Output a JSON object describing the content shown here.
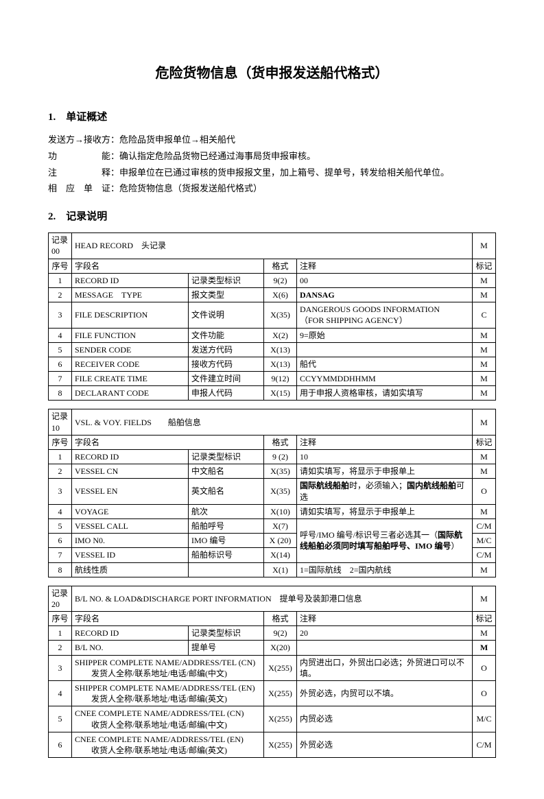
{
  "title": "危险货物信息（货申报发送船代格式）",
  "section1": {
    "heading": "1.　单证概述",
    "lines": [
      {
        "label": "发送方→接收方：",
        "text": "危险品货申报单位→相关船代"
      },
      {
        "label": "功　　　　　能：",
        "text": "确认指定危险品货物已经通过海事局货申报审核。"
      },
      {
        "label": "注　　　　　释：",
        "text": "申报单位在已通过审核的货申报报文里，加上箱号、提单号，转发给相关船代单位。"
      },
      {
        "label": "相　应　单　证：",
        "text": "危险货物信息（货报发送船代格式）"
      }
    ]
  },
  "section2_heading": "2.　记录说明",
  "tables": [
    {
      "rec_label": "记录 00",
      "rec_title": "HEAD RECORD　头记录",
      "rec_mark": "M",
      "headers": {
        "seq": "序号",
        "name": "字段名",
        "fmt": "格式",
        "note": "注释",
        "mark": "标记"
      },
      "rows": [
        {
          "seq": "1",
          "en": "RECORD ID",
          "cn": "记录类型标识",
          "fmt": "9(2)",
          "note": "00",
          "mark": "M"
        },
        {
          "seq": "2",
          "en": "MESSAGE　TYPE",
          "cn": "报文类型",
          "fmt": "X(6)",
          "note": "DANSAG",
          "note_bold": true,
          "mark": "M"
        },
        {
          "seq": "3",
          "en": "FILE DESCRIPTION",
          "cn": "文件说明",
          "fmt": "X(35)",
          "note": "DANGEROUS GOODS INFORMATION　　　　　　（FOR SHIPPING AGENCY）",
          "mark": "C"
        },
        {
          "seq": "4",
          "en": "FILE FUNCTION",
          "cn": "文件功能",
          "fmt": "X(2)",
          "note": "9=原始",
          "mark": "M"
        },
        {
          "seq": "5",
          "en": "SENDER CODE",
          "cn": "发送方代码",
          "fmt": "X(13)",
          "note": "",
          "mark": "M"
        },
        {
          "seq": "6",
          "en": "RECEIVER CODE",
          "cn": "接收方代码",
          "fmt": "X(13)",
          "note": "船代",
          "mark": "M"
        },
        {
          "seq": "7",
          "en": "FILE CREATE TIME",
          "cn": "文件建立时间",
          "fmt": "9(12)",
          "note": "CCYYMMDDHHMM",
          "mark": "M"
        },
        {
          "seq": "8",
          "en": "DECLARANT CODE",
          "cn": "申报人代码",
          "fmt": "X(15)",
          "note": "用于申报人资格审核，请如实填写",
          "mark": "M"
        }
      ]
    },
    {
      "rec_label": "记录 10",
      "rec_title": "VSL. & VOY. FIELDS　　船舶信息",
      "rec_mark": "M",
      "headers": {
        "seq": "序号",
        "name": "字段名",
        "fmt": "格式",
        "note": "注释",
        "mark": "标记"
      },
      "rows": [
        {
          "seq": "1",
          "en": "RECORD ID",
          "cn": "记录类型标识",
          "fmt": "9 (2)",
          "note": "10",
          "mark": "M"
        },
        {
          "seq": "2",
          "en": "VESSEL CN",
          "cn": "中文船名",
          "fmt": "X(35)",
          "note": "请如实填写，将显示于申报单上",
          "mark": "M"
        },
        {
          "seq": "3",
          "en": "VESSEL EN",
          "cn": "英文船名",
          "fmt": "X(35)",
          "note_html": "<b>国际航线船舶</b>时，必须输入；<b>国内航线船舶</b>可选",
          "mark": "O"
        },
        {
          "seq": "4",
          "en": "VOYAGE",
          "cn": "航次",
          "fmt": "X(10)",
          "note": "请如实填写，将显示于申报单上",
          "mark": "M"
        },
        {
          "seq": "5",
          "en": "VESSEL CALL",
          "cn": "船舶呼号",
          "fmt": "X(7)",
          "note_rowspan": 3,
          "note_html": "呼号/IMO 编号/标识号三者必选其一（<b>国际航线船舶必须同时填写船舶呼号、IMO 编号</b>）",
          "mark": "C/M"
        },
        {
          "seq": "6",
          "en": "IMO N0.",
          "cn": "IMO 编号",
          "fmt": "X (20)",
          "mark": "M/C"
        },
        {
          "seq": "7",
          "en": "VESSEL ID",
          "cn": "船舶标识号",
          "fmt": "X(14)",
          "mark": "C/M"
        },
        {
          "seq": "8",
          "en": "航线性质",
          "cn": "",
          "fmt": "X(1)",
          "note": "1=国际航线　2=国内航线",
          "mark": "M"
        }
      ]
    },
    {
      "rec_label": "记录 20",
      "rec_title": "B/L NO. & LOAD&DISCHARGE PORT INFORMATION　提单号及装卸港口信息",
      "rec_mark": "M",
      "headers": {
        "seq": "序号",
        "name": "字段名",
        "fmt": "格式",
        "note": "注释",
        "mark": "标记"
      },
      "rows": [
        {
          "seq": "1",
          "en": "RECORD ID",
          "cn": "记录类型标识",
          "fmt": "9(2)",
          "note": "20",
          "mark": "M"
        },
        {
          "seq": "2",
          "en": "B/L NO.",
          "cn": "提单号",
          "fmt": "X(20)",
          "note": "",
          "mark": "M",
          "mark_bold": true
        },
        {
          "seq": "3",
          "en": "SHIPPER COMPLETE NAME/ADDRESS/TEL (CN)",
          "cn": "发货人全称/联系地址/电话/邮编(中文)",
          "fmt": "X(255)",
          "note": "内贸进出口，外贸出口必选；外贸进口可以不填。",
          "mark": "O",
          "stacked": true
        },
        {
          "seq": "4",
          "en": "SHIPPER COMPLETE NAME/ADDRESS/TEL (EN)",
          "cn": "发货人全称/联系地址/电话/邮编(英文)",
          "fmt": "X(255)",
          "note": "外贸必选，内贸可以不填。",
          "mark": "O",
          "stacked": true
        },
        {
          "seq": "5",
          "en": "CNEE COMPLETE NAME/ADDRESS/TEL (CN)",
          "cn": "收货人全称/联系地址/电话/邮编(中文)",
          "fmt": "X(255)",
          "note": "内贸必选",
          "mark": "M/C",
          "stacked": true
        },
        {
          "seq": "6",
          "en": "CNEE COMPLETE NAME/ADDRESS/TEL (EN)",
          "cn": "收货人全称/联系地址/电话/邮编(英文)",
          "fmt": "X(255)",
          "note": "外贸必选",
          "mark": "C/M",
          "stacked": true
        }
      ]
    }
  ]
}
